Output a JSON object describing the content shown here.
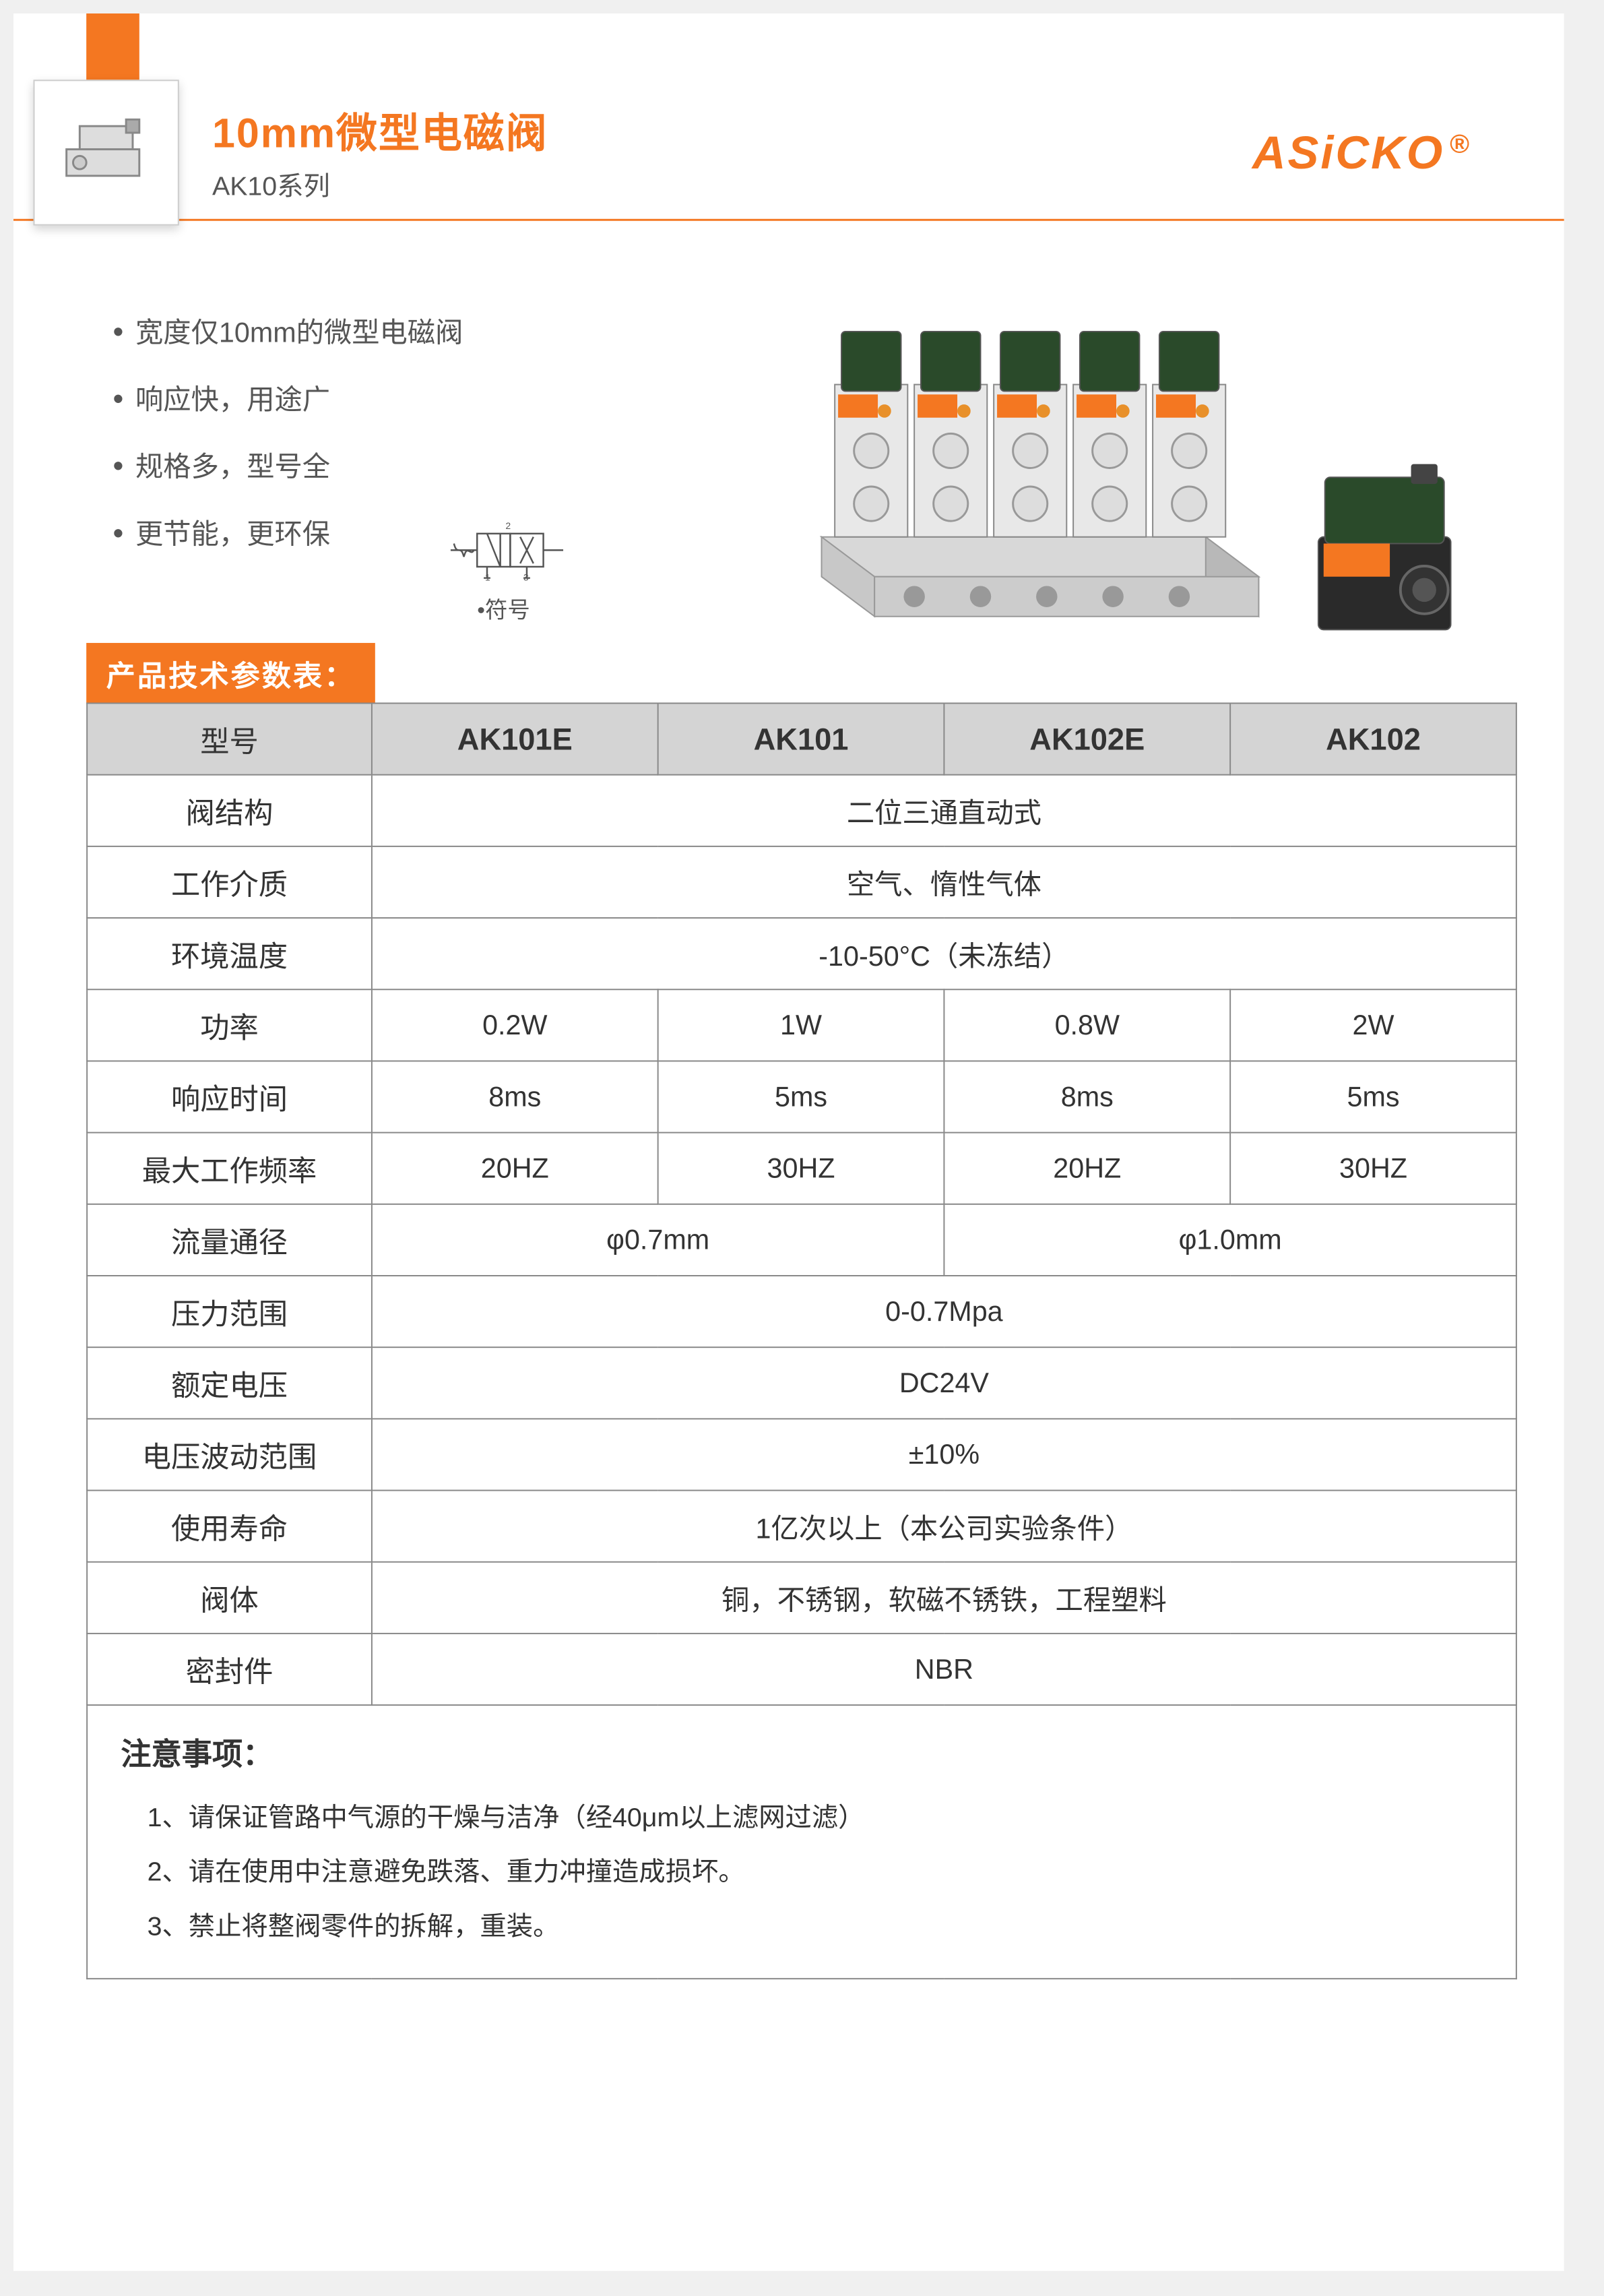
{
  "colors": {
    "accent": "#f47721",
    "text_dark": "#333333",
    "text_mid": "#555555",
    "header_bg": "#d4d4d4",
    "border": "#888888",
    "page_bg": "#ffffff"
  },
  "header": {
    "main_title": "10mm微型电磁阀",
    "sub_title": "AK10系列",
    "brand": "ASiCKO",
    "brand_mark": "®"
  },
  "features": [
    "宽度仅10mm的微型电磁阀",
    "响应快，用途广",
    "规格多，型号全",
    "更节能，更环保"
  ],
  "symbol_label": "•符号",
  "section_header": "产品技术参数表：",
  "table": {
    "model_label": "型号",
    "models": [
      "AK101E",
      "AK101",
      "AK102E",
      "AK102"
    ],
    "rows": [
      {
        "label": "阀结构",
        "span": "full",
        "value": "二位三通直动式"
      },
      {
        "label": "工作介质",
        "span": "full",
        "value": "空气、惰性气体"
      },
      {
        "label": "环境温度",
        "span": "full",
        "value": "-10-50°C（未冻结）"
      },
      {
        "label": "功率",
        "span": "each",
        "values": [
          "0.2W",
          "1W",
          "0.8W",
          "2W"
        ]
      },
      {
        "label": "响应时间",
        "span": "each",
        "values": [
          "8ms",
          "5ms",
          "8ms",
          "5ms"
        ]
      },
      {
        "label": "最大工作频率",
        "span": "each",
        "values": [
          "20HZ",
          "30HZ",
          "20HZ",
          "30HZ"
        ]
      },
      {
        "label": "流量通径",
        "span": "pair",
        "values": [
          "φ0.7mm",
          "φ1.0mm"
        ]
      },
      {
        "label": "压力范围",
        "span": "full",
        "value": "0-0.7Mpa"
      },
      {
        "label": "额定电压",
        "span": "full",
        "value": "DC24V"
      },
      {
        "label": "电压波动范围",
        "span": "full",
        "value": "±10%"
      },
      {
        "label": "使用寿命",
        "span": "full",
        "value": "1亿次以上（本公司实验条件）"
      },
      {
        "label": "阀体",
        "span": "full",
        "value": "铜，不锈钢，软磁不锈铁，工程塑料"
      },
      {
        "label": "密封件",
        "span": "full",
        "value": "NBR"
      }
    ]
  },
  "notes": {
    "title": "注意事项：",
    "items": [
      "1、请保证管路中气源的干燥与洁净（经40μm以上滤网过滤）",
      "2、请在使用中注意避免跌落、重力冲撞造成损坏。",
      "3、禁止将整阀零件的拆解，重装。"
    ]
  }
}
